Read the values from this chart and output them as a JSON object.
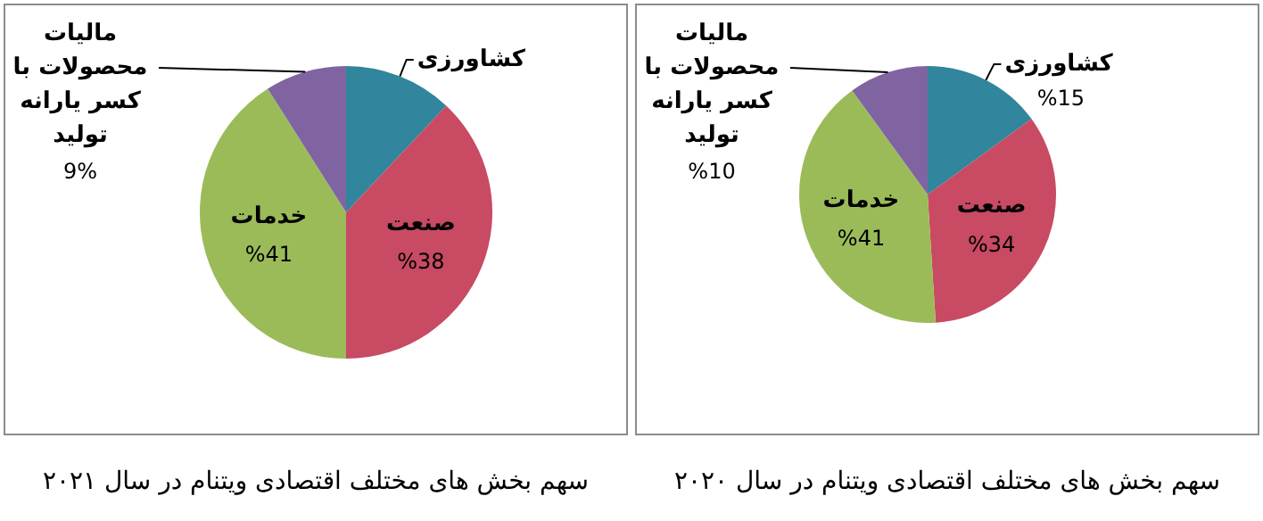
{
  "chart_data": [
    {
      "type": "pie",
      "title": "سهم بخش های مختلف اقتصادی ویتنام در سال ۲۰۲۱",
      "categories": [
        "کشاورزی",
        "صنعت",
        "خدمات",
        "مالیات محصولات با کسر یارانه تولید"
      ],
      "values": [
        12,
        38,
        41,
        9
      ],
      "value_labels": [
        null,
        "%38",
        "%41",
        "9%"
      ],
      "colors": [
        "#31859c",
        "#c84a63",
        "#9bbb59",
        "#8064a2"
      ]
    },
    {
      "type": "pie",
      "title": "سهم بخش های مختلف اقتصادی ویتنام در سال ۲۰۲۰",
      "categories": [
        "کشاورزی",
        "صنعت",
        "خدمات",
        "مالیات محصولات با کسر یارانه تولید"
      ],
      "values": [
        15,
        34,
        41,
        10
      ],
      "value_labels": [
        "%15",
        "%34",
        "%41",
        "%10"
      ],
      "colors": [
        "#31859c",
        "#c84a63",
        "#9bbb59",
        "#8064a2"
      ]
    }
  ]
}
